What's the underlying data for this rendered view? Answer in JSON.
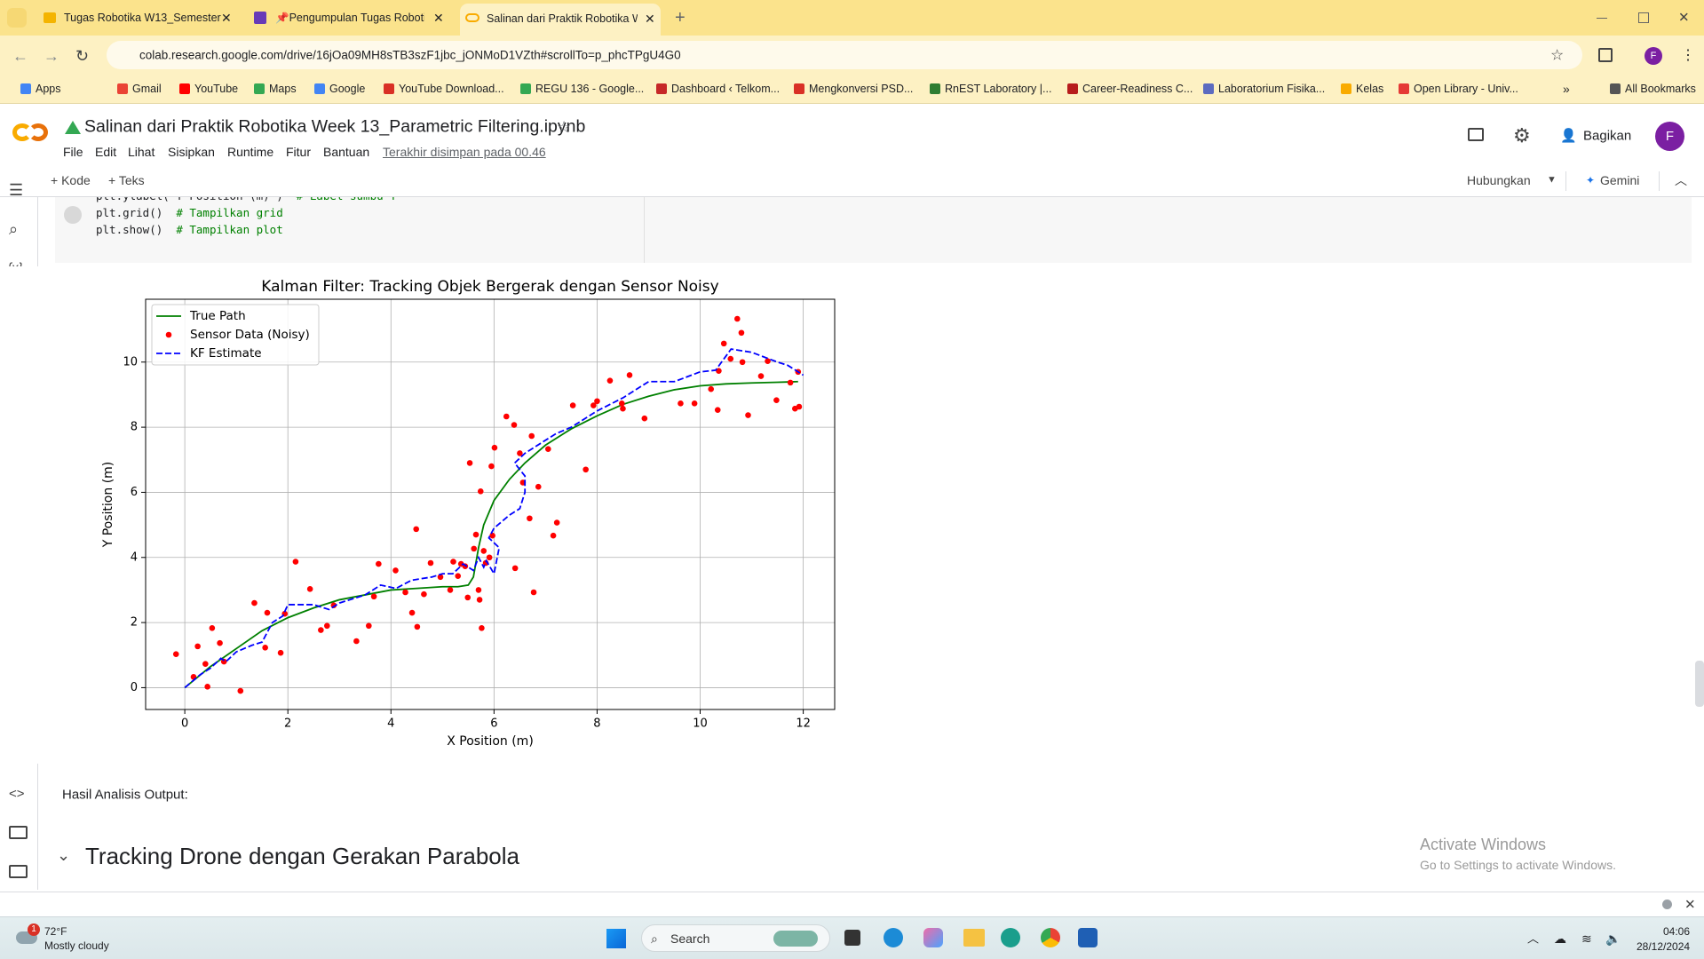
{
  "browser": {
    "tabs": [
      "Tugas Robotika W13_Semester",
      "📌Pengumpulan Tugas Robotik",
      "Salinan dari Praktik Robotika W"
    ],
    "url": "colab.research.google.com/drive/16jOa09MH8sTB3szF1jbc_jONMoD1VZth#scrollTo=p_phcTPgU4G0",
    "profile": "F",
    "bookmarks": [
      "Apps",
      "Gmail",
      "YouTube",
      "Maps",
      "Google",
      "YouTube Download...",
      "REGU 136 - Google...",
      "Dashboard ‹ Telkom...",
      "Mengkonversi PSD...",
      "RnEST Laboratory |...",
      "Career-Readiness C...",
      "Laboratorium Fisika...",
      "Kelas",
      "Open Library - Univ...",
      "All Bookmarks"
    ]
  },
  "notebook": {
    "title": "Salinan dari Praktik Robotika Week 13_Parametric Filtering.ipynb",
    "menu": [
      "File",
      "Edit",
      "Lihat",
      "Sisipkan",
      "Runtime",
      "Fitur",
      "Bantuan"
    ],
    "saved": "Terakhir disimpan pada 00.46",
    "share": "Bagikan",
    "avatar": "F",
    "toolbar": [
      "+ Kode",
      "+ Teks"
    ],
    "connect": "Hubungkan",
    "gemini": "Gemini",
    "code": [
      {
        "code": "plt.ylabel('Y Position (m)')",
        "comment": "# Label sumbu Y"
      },
      {
        "code": "plt.grid()",
        "comment": "# Tampilkan grid"
      },
      {
        "code": "plt.show()",
        "comment": "# Tampilkan plot"
      }
    ],
    "text": "Hasil Analisis Output:",
    "heading": "Tracking Drone dengan Gerakan Parabola"
  },
  "watermark": {
    "title": "Activate Windows",
    "subtitle": "Go to Settings to activate Windows."
  },
  "taskbar": {
    "temperature": "72°F",
    "weather": "Mostly cloudy",
    "badge": "1",
    "search": "Search",
    "time": "04:06",
    "date": "28/12/2024"
  },
  "chart_data": {
    "type": "line",
    "title": "Kalman Filter: Tracking Objek Bergerak dengan Sensor Noisy",
    "x_label": "X Position (m)",
    "y_label": "Y Position (m)",
    "xlim": [
      -0.76,
      12.61
    ],
    "ylim": [
      -0.67,
      11.93
    ],
    "xticks": [
      0,
      2,
      4,
      6,
      8,
      10,
      12
    ],
    "yticks": [
      0,
      2,
      4,
      6,
      8,
      10
    ],
    "grid": true,
    "legend": "upper left",
    "series": [
      {
        "name": "True Path",
        "color": "#008000",
        "linestyle": "solid",
        "x": [
          0,
          0.5,
          1,
          1.5,
          2,
          2.5,
          3,
          3.5,
          4,
          4.5,
          5,
          5.3,
          5.5,
          5.6,
          5.7,
          5.8,
          6,
          6.3,
          6.6,
          7,
          7.5,
          8,
          8.5,
          9,
          9.5,
          10,
          10.5,
          11,
          11.5,
          11.9
        ],
        "values": [
          0,
          0.65,
          1.2,
          1.75,
          2.15,
          2.45,
          2.7,
          2.85,
          3.0,
          3.05,
          3.1,
          3.1,
          3.15,
          3.4,
          4.3,
          5.0,
          5.75,
          6.4,
          6.9,
          7.45,
          7.95,
          8.35,
          8.7,
          8.95,
          9.15,
          9.27,
          9.33,
          9.36,
          9.38,
          9.4
        ]
      },
      {
        "name": "Sensor Data (Noisy)",
        "color": "#ff0000",
        "marker": "o",
        "x": [
          -0.17,
          0.17,
          0.25,
          0.4,
          0.44,
          0.53,
          0.68,
          0.76,
          1.08,
          1.35,
          1.56,
          1.6,
          1.86,
          1.94,
          2.15,
          2.43,
          2.64,
          2.76,
          2.89,
          3.33,
          3.57,
          3.67,
          3.76,
          4.09,
          4.28,
          4.41,
          4.49,
          4.51,
          4.64,
          4.77,
          4.96,
          5.15,
          5.21,
          5.3,
          5.36,
          5.44,
          5.49,
          5.53,
          5.61,
          5.65,
          5.7,
          5.72,
          5.74,
          5.76,
          5.8,
          5.84,
          5.91,
          5.95,
          5.97,
          6.01,
          6.24,
          6.39,
          6.41,
          6.5,
          6.56,
          6.69,
          6.73,
          6.77,
          6.86,
          7.05,
          7.15,
          7.22,
          7.53,
          7.78,
          7.93,
          8.0,
          8.25,
          8.48,
          8.5,
          8.63,
          8.92,
          9.62,
          9.89,
          10.21,
          10.34,
          10.36,
          10.46,
          10.59,
          10.72,
          10.8,
          10.82,
          10.93,
          11.18,
          11.31,
          11.48,
          11.75,
          11.84,
          11.92,
          11.9
        ],
        "values": [
          1.03,
          0.33,
          1.27,
          0.73,
          0.03,
          1.83,
          1.37,
          0.8,
          -0.1,
          2.6,
          1.23,
          2.3,
          1.07,
          2.27,
          3.87,
          3.03,
          1.77,
          1.9,
          2.53,
          1.43,
          1.9,
          2.8,
          3.8,
          3.6,
          2.93,
          2.3,
          4.87,
          1.87,
          2.87,
          3.83,
          3.4,
          3.0,
          3.87,
          3.43,
          3.8,
          3.73,
          2.77,
          6.9,
          4.27,
          4.7,
          3.0,
          2.7,
          6.03,
          1.83,
          4.2,
          3.83,
          4.0,
          6.8,
          4.67,
          7.37,
          8.33,
          8.07,
          3.67,
          7.2,
          6.3,
          5.2,
          7.73,
          2.93,
          6.17,
          7.33,
          4.67,
          5.07,
          8.67,
          6.7,
          8.67,
          8.8,
          9.43,
          8.73,
          8.57,
          9.6,
          8.27,
          8.73,
          8.73,
          9.17,
          8.53,
          9.73,
          10.57,
          10.1,
          11.33,
          10.9,
          10.0,
          8.37,
          9.57,
          10.03,
          8.83,
          9.37,
          8.57,
          8.63,
          9.7
        ]
      },
      {
        "name": "KF Estimate",
        "color": "#0000ff",
        "linestyle": "dashed",
        "x": [
          0,
          0.3,
          0.5,
          0.7,
          0.8,
          1.0,
          1.3,
          1.5,
          1.7,
          1.9,
          2.0,
          2.5,
          2.8,
          3.0,
          3.5,
          3.8,
          4.1,
          4.4,
          4.8,
          5.0,
          5.2,
          5.4,
          5.6,
          5.7,
          5.8,
          5.85,
          6.0,
          6.1,
          5.9,
          6.0,
          6.3,
          6.5,
          6.6,
          6.6,
          6.4,
          6.6,
          6.9,
          7.2,
          7.5,
          8.0,
          8.5,
          9.0,
          9.5,
          10.0,
          10.3,
          10.6,
          11.0,
          11.5,
          11.7,
          11.9,
          12.0
        ],
        "values": [
          0,
          0.4,
          0.6,
          0.9,
          0.8,
          1.1,
          1.3,
          1.4,
          2.0,
          2.2,
          2.55,
          2.55,
          2.4,
          2.6,
          2.85,
          3.15,
          3.05,
          3.3,
          3.4,
          3.5,
          3.5,
          3.8,
          3.6,
          4.0,
          3.7,
          3.9,
          3.5,
          4.3,
          4.6,
          4.9,
          5.3,
          5.5,
          6.0,
          6.5,
          6.9,
          7.2,
          7.5,
          7.8,
          8.0,
          8.5,
          8.9,
          9.4,
          9.4,
          9.7,
          9.75,
          10.4,
          10.3,
          10.0,
          9.9,
          9.7,
          9.6
        ]
      }
    ]
  }
}
